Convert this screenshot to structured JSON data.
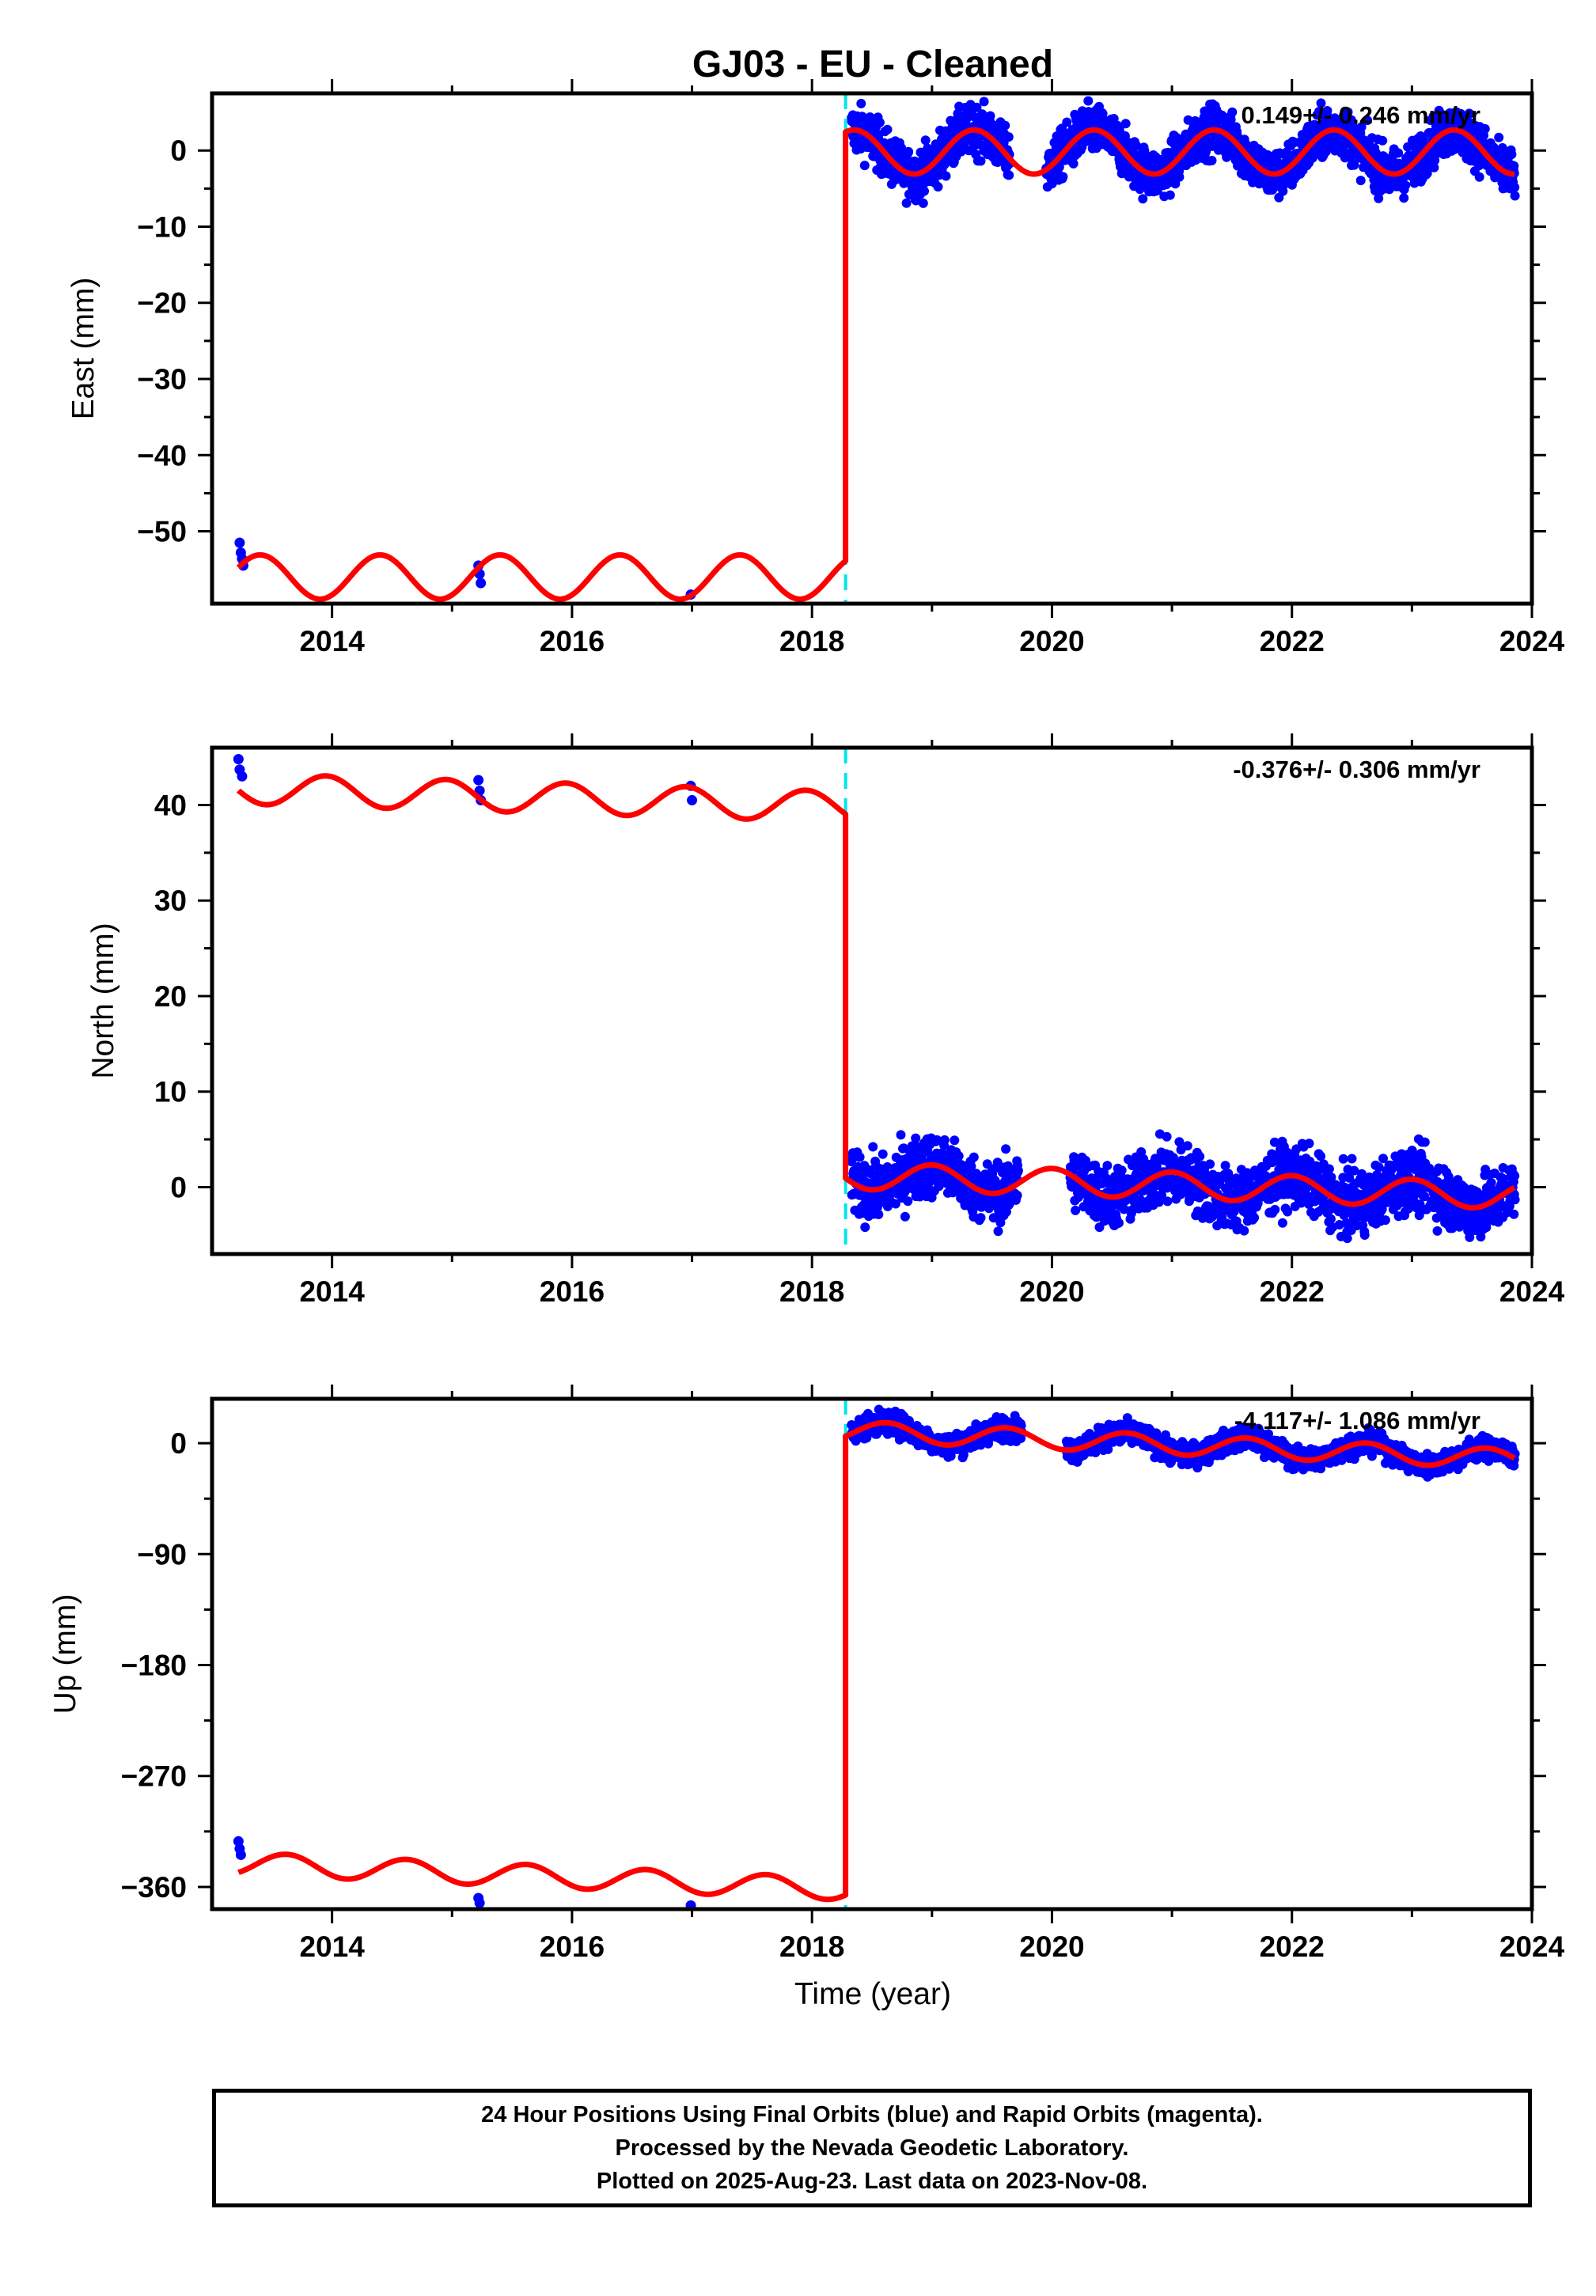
{
  "page": {
    "title": "GJ03  - EU - Cleaned",
    "xlabel": "Time (year)",
    "caption": [
      "24 Hour Positions Using Final Orbits (blue) and Rapid Orbits (magenta).",
      "Processed by the Nevada Geodetic Laboratory.",
      "Plotted on 2025-Aug-23. Last data on 2023-Nov-08."
    ]
  },
  "colors": {
    "observations": "#0000ff",
    "model": "#ff0000",
    "offset_marker": "#00e5ee",
    "axes": "#000000"
  },
  "chart_data": [
    {
      "type": "scatter",
      "ylabel": "East (mm)",
      "rate_label": "0.149+/- 0.246 mm/yr",
      "xlim": [
        2013.0,
        2024.0
      ],
      "ylim": [
        -59.5,
        7.5
      ],
      "xticks": [
        "2014",
        "2016",
        "2018",
        "2020",
        "2022",
        "2024"
      ],
      "xtick_values": [
        2014,
        2016,
        2018,
        2020,
        2022,
        2024
      ],
      "yticks": [
        "0",
        "−10",
        "−20",
        "−30",
        "−40",
        "−50"
      ],
      "ytick_values": [
        0,
        -10,
        -20,
        -30,
        -40,
        -50
      ],
      "offset_epoch": 2018.28,
      "model": {
        "before": {
          "base": -56.0,
          "amplitude": 2.9,
          "phase_peak": 2013.4
        },
        "after": {
          "base": -0.2,
          "amplitude": 2.9,
          "phase_peak": 2019.35,
          "end": -3.5
        }
      },
      "points_sparse": [
        [
          2013.23,
          -51.5
        ],
        [
          2013.24,
          -52.8
        ],
        [
          2013.25,
          -53.6
        ],
        [
          2013.26,
          -54.5
        ],
        [
          2015.22,
          -54.5
        ],
        [
          2015.23,
          -55.6
        ],
        [
          2015.24,
          -56.8
        ],
        [
          2016.99,
          -58.3
        ]
      ],
      "points_continuous": {
        "start": 2018.33,
        "end": 2023.86,
        "noise": 1.6,
        "gap": [
          2019.65,
          2019.95
        ]
      }
    },
    {
      "type": "scatter",
      "ylabel": "North (mm)",
      "rate_label": "-0.376+/- 0.306 mm/yr",
      "xlim": [
        2013.0,
        2024.0
      ],
      "ylim": [
        -7.0,
        46.0
      ],
      "xticks": [
        "2014",
        "2016",
        "2018",
        "2020",
        "2022",
        "2024"
      ],
      "xtick_values": [
        2014,
        2016,
        2018,
        2020,
        2022,
        2024
      ],
      "yticks": [
        "40",
        "30",
        "20",
        "10",
        "0"
      ],
      "ytick_values": [
        40,
        30,
        20,
        10,
        0
      ],
      "offset_epoch": 2018.28,
      "model": {
        "before": {
          "base": 41.8,
          "amplitude": 1.6,
          "phase_peak": 2013.95,
          "trend": -0.376
        },
        "after": {
          "base": 1.2,
          "amplitude": 1.4,
          "phase_peak": 2019.0,
          "trend": -0.376
        }
      },
      "points_sparse": [
        [
          2013.22,
          44.8
        ],
        [
          2013.23,
          43.7
        ],
        [
          2013.25,
          43.0
        ],
        [
          2015.22,
          42.6
        ],
        [
          2015.23,
          41.5
        ],
        [
          2015.24,
          40.5
        ],
        [
          2016.99,
          42.0
        ],
        [
          2017.0,
          40.5
        ]
      ],
      "points_continuous": {
        "start": 2018.33,
        "end": 2023.86,
        "noise": 1.6,
        "gap": [
          2019.72,
          2020.15
        ]
      }
    },
    {
      "type": "scatter",
      "ylabel": "Up (mm)",
      "rate_label": "-4.117+/- 1.086 mm/yr",
      "xlim": [
        2013.0,
        2024.0
      ],
      "ylim": [
        -378.0,
        36.0
      ],
      "xticks": [
        "2014",
        "2016",
        "2018",
        "2020",
        "2022",
        "2024"
      ],
      "xtick_values": [
        2014,
        2016,
        2018,
        2020,
        2022,
        2024
      ],
      "yticks": [
        "0",
        "−90",
        "−180",
        "−270",
        "−360"
      ],
      "ytick_values": [
        0,
        -90,
        -180,
        -270,
        -360
      ],
      "offset_epoch": 2018.28,
      "model": {
        "before": {
          "base": -340.0,
          "amplitude": 9.0,
          "phase_peak": 2013.62,
          "trend": -4.117
        },
        "after": {
          "base": 10.0,
          "amplitude": 8.0,
          "phase_peak": 2018.62,
          "trend": -4.117
        }
      },
      "points_sparse": [
        [
          2013.22,
          -323.0
        ],
        [
          2013.23,
          -329.0
        ],
        [
          2013.24,
          -334.0
        ],
        [
          2015.22,
          -369.0
        ],
        [
          2015.23,
          -373.0
        ],
        [
          2016.99,
          -375.0
        ],
        [
          2017.0,
          -379.0
        ]
      ],
      "points_continuous": {
        "start": 2018.33,
        "end": 2023.86,
        "noise": 4.5,
        "gap": [
          2019.75,
          2020.12
        ]
      }
    }
  ]
}
